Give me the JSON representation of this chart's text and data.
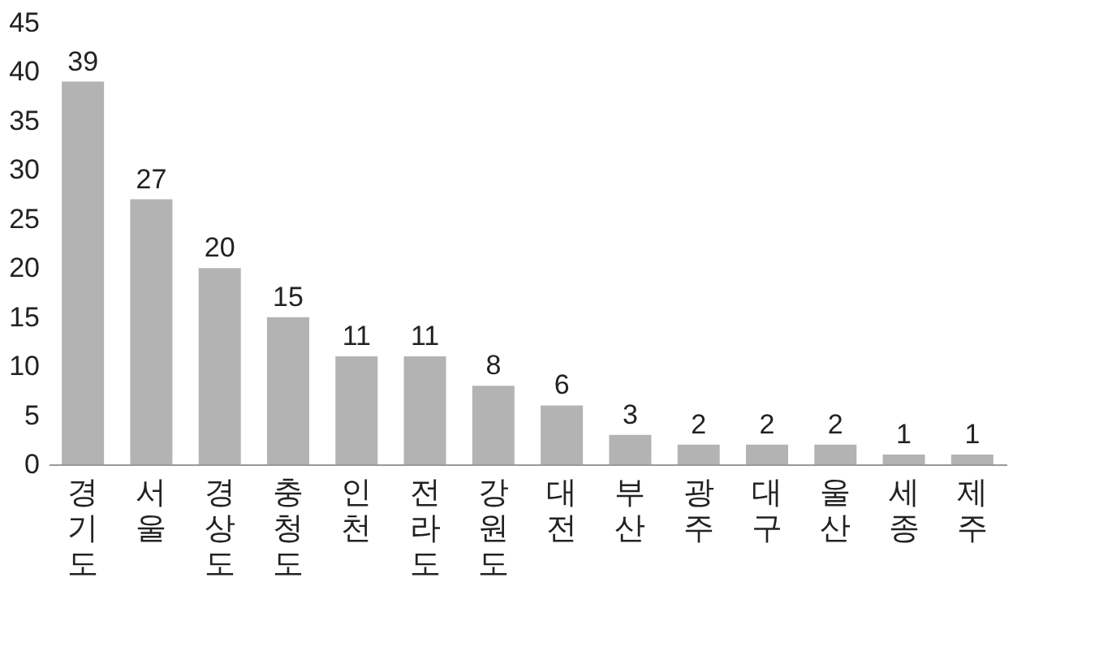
{
  "chart_data": {
    "type": "bar",
    "categories": [
      "경기도",
      "서울",
      "경상도",
      "충청도",
      "인천",
      "전라도",
      "강원도",
      "대전",
      "부산",
      "광주",
      "대구",
      "울산",
      "세종",
      "제주"
    ],
    "values": [
      39,
      27,
      20,
      15,
      11,
      11,
      8,
      6,
      3,
      2,
      2,
      2,
      1,
      1
    ],
    "color": "#b3b3b3",
    "ylim": [
      0,
      45
    ],
    "yticks": [
      0,
      5,
      10,
      15,
      20,
      25,
      30,
      35,
      40,
      45
    ],
    "grid": false,
    "data_labels": true
  }
}
